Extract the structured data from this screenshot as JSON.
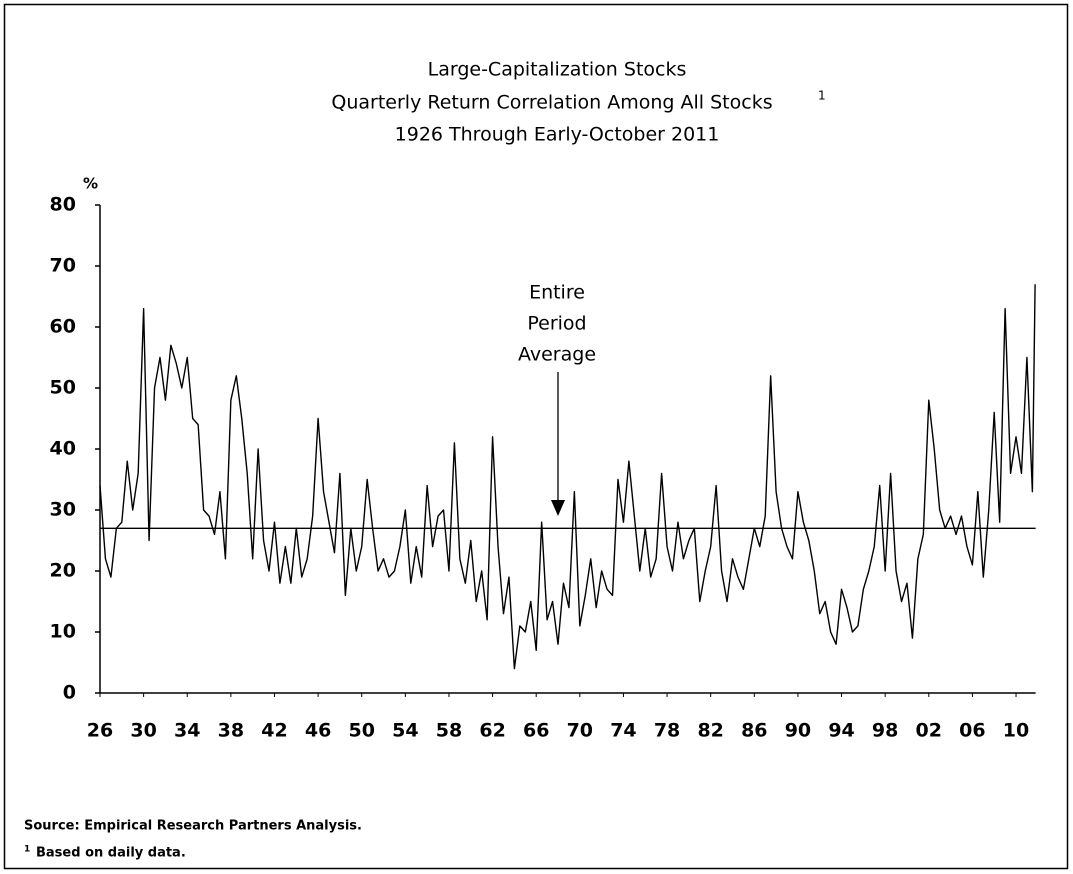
{
  "chart_data": {
    "type": "line",
    "title": "Large-Capitalization Stocks",
    "subtitle": "Quarterly Return Correlation Among All Stocks",
    "subtitle_note_marker": "1",
    "subtitle2": "1926 Through Early-October 2011",
    "y_axis_label": "%",
    "annotation": [
      "Entire",
      "Period",
      "Average"
    ],
    "average_line": 27,
    "color": "#000000",
    "x": [
      1926,
      1926.5,
      1927,
      1927.5,
      1928,
      1928.5,
      1929,
      1929.5,
      1930,
      1930.5,
      1931,
      1931.5,
      1932,
      1932.5,
      1933,
      1933.5,
      1934,
      1934.5,
      1935,
      1935.5,
      1936,
      1936.5,
      1937,
      1937.5,
      1938,
      1938.5,
      1939,
      1939.5,
      1940,
      1940.5,
      1941,
      1941.5,
      1942,
      1942.5,
      1943,
      1943.5,
      1944,
      1944.5,
      1945,
      1945.5,
      1946,
      1946.5,
      1947,
      1947.5,
      1948,
      1948.5,
      1949,
      1949.5,
      1950,
      1950.5,
      1951,
      1951.5,
      1952,
      1952.5,
      1953,
      1953.5,
      1954,
      1954.5,
      1955,
      1955.5,
      1956,
      1956.5,
      1957,
      1957.5,
      1958,
      1958.5,
      1959,
      1959.5,
      1960,
      1960.5,
      1961,
      1961.5,
      1962,
      1962.5,
      1963,
      1963.5,
      1964,
      1964.5,
      1965,
      1965.5,
      1966,
      1966.5,
      1967,
      1967.5,
      1968,
      1968.5,
      1969,
      1969.5,
      1970,
      1970.5,
      1971,
      1971.5,
      1972,
      1972.5,
      1973,
      1973.5,
      1974,
      1974.5,
      1975,
      1975.5,
      1976,
      1976.5,
      1977,
      1977.5,
      1978,
      1978.5,
      1979,
      1979.5,
      1980,
      1980.5,
      1981,
      1981.5,
      1982,
      1982.5,
      1983,
      1983.5,
      1984,
      1984.5,
      1985,
      1985.5,
      1986,
      1986.5,
      1987,
      1987.5,
      1988,
      1988.5,
      1989,
      1989.5,
      1990,
      1990.5,
      1991,
      1991.5,
      1992,
      1992.5,
      1993,
      1993.5,
      1994,
      1994.5,
      1995,
      1995.5,
      1996,
      1996.5,
      1997,
      1997.5,
      1998,
      1998.5,
      1999,
      1999.5,
      2000,
      2000.5,
      2001,
      2001.5,
      2002,
      2002.5,
      2003,
      2003.5,
      2004,
      2004.5,
      2005,
      2005.5,
      2006,
      2006.5,
      2007,
      2007.5,
      2008,
      2008.5,
      2009,
      2009.5,
      2010,
      2010.5,
      2011,
      2011.5,
      2011.75
    ],
    "values": [
      34,
      22,
      19,
      27,
      28,
      38,
      30,
      36,
      63,
      25,
      50,
      55,
      48,
      57,
      54,
      50,
      55,
      45,
      44,
      30,
      29,
      26,
      33,
      22,
      48,
      52,
      45,
      36,
      22,
      40,
      25,
      20,
      28,
      18,
      24,
      18,
      27,
      19,
      22,
      29,
      45,
      33,
      28,
      23,
      36,
      16,
      27,
      20,
      24,
      35,
      27,
      20,
      22,
      19,
      20,
      24,
      30,
      18,
      24,
      19,
      34,
      24,
      29,
      30,
      20,
      41,
      22,
      18,
      25,
      15,
      20,
      12,
      42,
      24,
      13,
      19,
      4,
      11,
      10,
      15,
      7,
      28,
      12,
      15,
      8,
      18,
      14,
      33,
      11,
      16,
      22,
      14,
      20,
      17,
      16,
      35,
      28,
      38,
      29,
      20,
      27,
      19,
      22,
      36,
      24,
      20,
      28,
      22,
      25,
      27,
      15,
      20,
      24,
      34,
      20,
      15,
      22,
      19,
      17,
      22,
      27,
      24,
      29,
      52,
      33,
      27,
      24,
      22,
      33,
      28,
      25,
      20,
      13,
      15,
      10,
      8,
      17,
      14,
      10,
      11,
      17,
      20,
      24,
      34,
      20,
      36,
      20,
      15,
      18,
      9,
      22,
      26,
      48,
      40,
      30,
      27,
      29,
      26,
      29,
      24,
      21,
      33,
      19,
      30,
      46,
      28,
      63,
      36,
      42,
      36,
      55,
      33,
      67
    ],
    "xlim": [
      1926,
      2011.8
    ],
    "ylim": [
      0,
      80
    ],
    "yticks": [
      0,
      10,
      20,
      30,
      40,
      50,
      60,
      70,
      80
    ],
    "xticks": [
      {
        "value": 1926,
        "label": "26"
      },
      {
        "value": 1930,
        "label": "30"
      },
      {
        "value": 1934,
        "label": "34"
      },
      {
        "value": 1938,
        "label": "38"
      },
      {
        "value": 1942,
        "label": "42"
      },
      {
        "value": 1946,
        "label": "46"
      },
      {
        "value": 1950,
        "label": "50"
      },
      {
        "value": 1954,
        "label": "54"
      },
      {
        "value": 1958,
        "label": "58"
      },
      {
        "value": 1962,
        "label": "62"
      },
      {
        "value": 1966,
        "label": "66"
      },
      {
        "value": 1970,
        "label": "70"
      },
      {
        "value": 1974,
        "label": "74"
      },
      {
        "value": 1978,
        "label": "78"
      },
      {
        "value": 1982,
        "label": "82"
      },
      {
        "value": 1986,
        "label": "86"
      },
      {
        "value": 1990,
        "label": "90"
      },
      {
        "value": 1994,
        "label": "94"
      },
      {
        "value": 1998,
        "label": "98"
      },
      {
        "value": 2002,
        "label": "02"
      },
      {
        "value": 2006,
        "label": "06"
      },
      {
        "value": 2010,
        "label": "10"
      }
    ],
    "source": "Source: Empirical Research Partners Analysis.",
    "footnote_marker": "1",
    "footnote": "Based on daily data."
  }
}
